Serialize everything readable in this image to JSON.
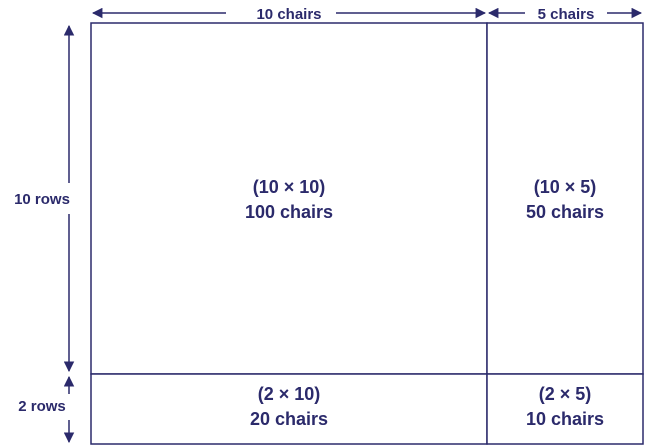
{
  "dimensions": {
    "top_left": "10 chairs",
    "top_right": "5 chairs",
    "left_top": "10 rows",
    "left_bottom": "2 rows"
  },
  "cells": {
    "top_left": {
      "product": "(10 × 10)",
      "total": "100 chairs"
    },
    "top_right": {
      "product": "(10 × 5)",
      "total": "50 chairs"
    },
    "bottom_left": {
      "product": "(2 × 10)",
      "total": "20 chairs"
    },
    "bottom_right": {
      "product": "(2 × 5)",
      "total": "10 chairs"
    }
  },
  "colors": {
    "ink": "#2b2a6b",
    "background": "#ffffff"
  }
}
